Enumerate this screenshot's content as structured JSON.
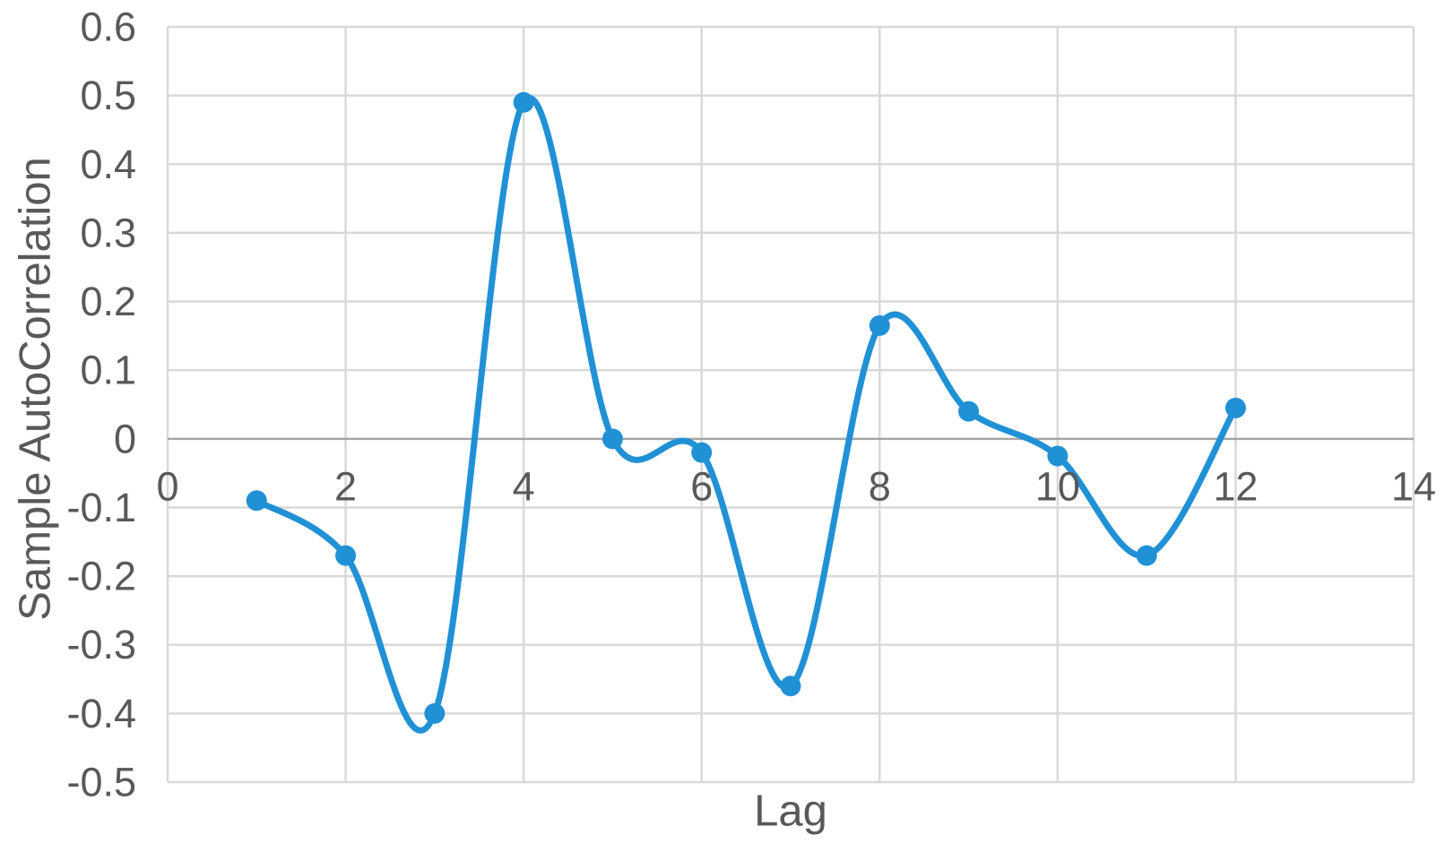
{
  "page": {
    "background": "#ffffff"
  },
  "chart_data": {
    "type": "line",
    "smooth": true,
    "title": "",
    "xlabel": "Lag",
    "ylabel": "Sample AutoCorrelation",
    "x": [
      1,
      2,
      3,
      4,
      5,
      6,
      7,
      8,
      9,
      10,
      11,
      12
    ],
    "y": [
      -0.09,
      -0.17,
      -0.4,
      0.49,
      0.0,
      -0.02,
      -0.36,
      0.165,
      0.04,
      -0.025,
      -0.17,
      0.045
    ],
    "xlim": [
      0,
      14
    ],
    "ylim": [
      -0.5,
      0.6
    ],
    "x_ticks": [
      0,
      2,
      4,
      6,
      8,
      10,
      12,
      14
    ],
    "x_tick_labels": [
      "0",
      "2",
      "4",
      "6",
      "8",
      "10",
      "12",
      "14"
    ],
    "y_ticks": [
      0.6,
      0.5,
      0.4,
      0.3,
      0.2,
      0.1,
      0,
      -0.1,
      -0.2,
      -0.3,
      -0.4,
      -0.5
    ],
    "y_tick_labels": [
      "0.6",
      "0.5",
      "0.4",
      "0.3",
      "0.2",
      "0.1",
      "0",
      "-0.1",
      "-0.2",
      "-0.3",
      "-0.4",
      "-0.5"
    ],
    "grid": true,
    "legend": false,
    "marker": "circle",
    "colors": {
      "series": "#2191d6",
      "grid": "#d9d9d9",
      "zero_line": "#a6a6a6",
      "text": "#595959"
    }
  }
}
